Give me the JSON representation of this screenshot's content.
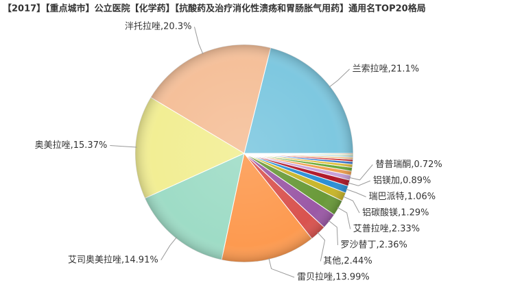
{
  "chart_data": {
    "type": "pie",
    "title": "【2017】【重点城市】公立医院【化学药】【抗酸药及治疗消化性溃疡和胃肠胀气用药】通用名TOP20格局",
    "values": [
      21.1,
      20.3,
      15.37,
      14.91,
      13.99,
      2.44,
      2.36,
      2.33,
      1.29,
      1.06,
      0.89,
      0.72,
      0.62,
      0.55,
      0.46,
      0.4,
      0.35,
      0.3,
      0.24,
      0.18,
      0.14
    ],
    "value_labels": [
      "兰索拉唑,21.1%",
      "泮托拉唑,20.3%",
      "奥美拉唑,15.37%",
      "艾司奥美拉唑,14.91%",
      "雷贝拉唑,13.99%",
      "其他,2.44%",
      "罗沙替丁,2.36%",
      "艾普拉唑,2.33%",
      "铝碳酸镁,1.29%",
      "瑞巴派特,1.06%",
      "铝镁加,0.89%",
      "替普瑞酮,0.72%",
      null,
      null,
      null,
      null,
      null,
      null,
      null,
      null,
      null
    ],
    "colors": [
      "#7ec8e0",
      "#f5c09a",
      "#f2ee94",
      "#9edcc6",
      "#fd9a50",
      "#d9534f",
      "#9b59a6",
      "#6a9a3a",
      "#c8b62a",
      "#2b8fd6",
      "#b0182a",
      "#c9a0d8",
      "#f0a050",
      "#6aaa3a",
      "#e0c040",
      "#3a7ad0",
      "#d04040",
      "#f0c080",
      "#a0d0e0",
      "#90c060",
      "#e08030"
    ]
  }
}
